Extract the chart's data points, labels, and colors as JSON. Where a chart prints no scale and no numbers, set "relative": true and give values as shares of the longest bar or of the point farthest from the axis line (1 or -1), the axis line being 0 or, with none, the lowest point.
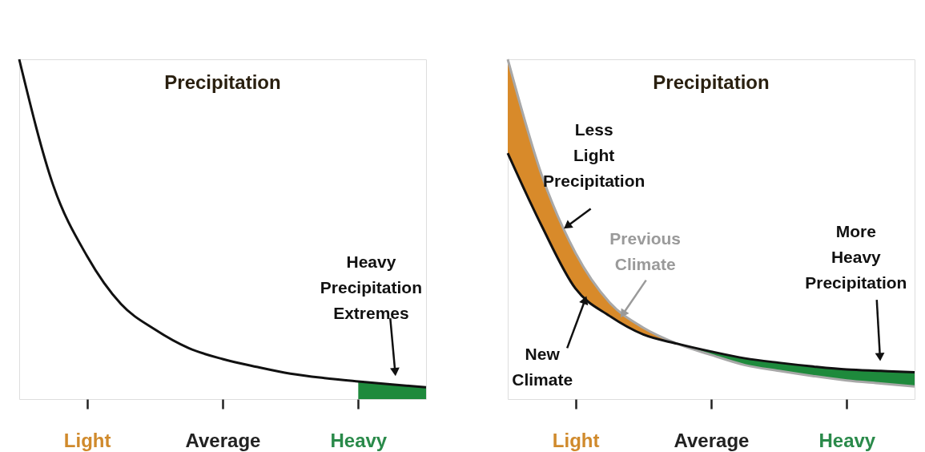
{
  "chart_data": [
    {
      "type": "line",
      "title": "Precipitation",
      "relative": true,
      "categories": [
        null,
        null,
        "Light",
        null,
        null,
        null,
        "Average",
        null,
        null,
        null,
        "Heavy",
        null,
        null
      ],
      "series": [
        {
          "color": "#111111",
          "values": [
            1.0,
            0.63,
            0.421,
            0.28,
            0.205,
            0.15,
            0.118,
            0.095,
            0.075,
            0.062,
            0.052,
            0.043,
            0.035
          ]
        },
        {
          "type": "area",
          "color": "#1e8a3c",
          "values": [
            null,
            null,
            null,
            null,
            null,
            null,
            null,
            null,
            null,
            null,
            0.052,
            0.043,
            0.035
          ]
        }
      ],
      "annotations": [
        "Heavy\nPrecipitation\nExtremes"
      ]
    },
    {
      "type": "line",
      "title": "Precipitation",
      "relative": true,
      "categories": [
        null,
        null,
        "Light",
        null,
        null,
        null,
        "Average",
        null,
        null,
        null,
        "Heavy",
        null,
        null
      ],
      "series": [
        {
          "color": "#a8a8a8",
          "values": [
            1.0,
            0.66,
            0.43,
            0.285,
            0.21,
            0.163,
            0.13,
            0.1,
            0.083,
            0.068,
            0.055,
            0.046,
            0.037
          ],
          "lower": [
            0.724,
            0.51,
            0.325,
            0.245,
            0.19,
            0.163,
            null,
            null,
            null,
            null,
            null,
            null,
            null
          ],
          "upper": [
            1.0,
            0.66,
            0.43,
            0.285,
            0.21,
            0.163,
            null,
            null,
            null,
            null,
            null,
            null,
            null
          ]
        },
        {
          "color": "#111111",
          "values": [
            0.724,
            0.51,
            0.325,
            0.245,
            0.19,
            0.163,
            0.14,
            0.12,
            0.107,
            0.096,
            0.087,
            0.083,
            0.079
          ],
          "lower": [
            null,
            null,
            null,
            null,
            null,
            0.163,
            0.13,
            0.1,
            0.083,
            0.068,
            0.055,
            0.046,
            0.037
          ],
          "upper": [
            null,
            null,
            null,
            null,
            null,
            0.163,
            0.14,
            0.12,
            0.107,
            0.096,
            0.087,
            0.083,
            0.079
          ]
        }
      ],
      "annotations": [
        "Less\nLight\nPrecipitation",
        "Previous\nClimate",
        "New\nClimate",
        "More\nHeavy\nPrecipitation"
      ]
    }
  ]
}
